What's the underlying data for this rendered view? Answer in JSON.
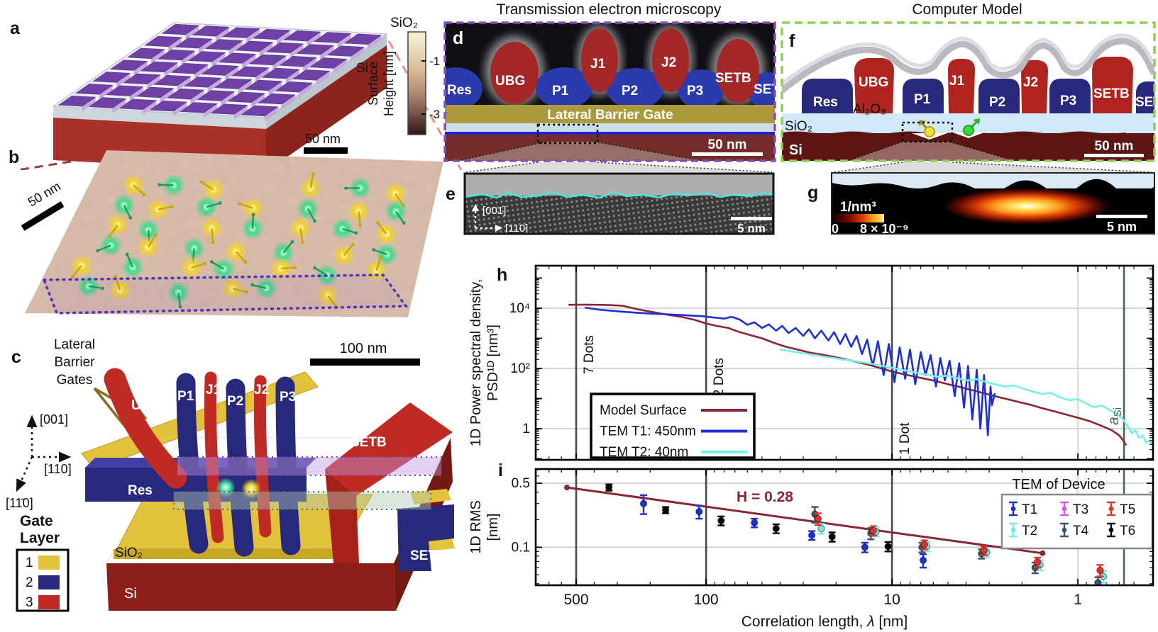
{
  "figure": {
    "panel_titles": {
      "tem": "Transmission electron microscopy",
      "model": "Computer Model"
    },
    "panel_letters": {
      "a": "a",
      "b": "b",
      "c": "c",
      "d": "d",
      "e": "e",
      "f": "f",
      "g": "g",
      "h": "h",
      "i": "i"
    },
    "gates": {
      "res": "Res",
      "ubg": "UBG",
      "p1": "P1",
      "j1": "J1",
      "p2": "P2",
      "j2": "J2",
      "p3": "P3",
      "setb": "SETB",
      "set": "SET"
    },
    "materials": {
      "si": "Si",
      "sio2": "SiO₂",
      "al2o3": "Al₂O₃"
    },
    "panel_a": {
      "colorbar_title_1": "Surface",
      "colorbar_title_2": "Height [nm]",
      "tick_hi": "-1",
      "tick_lo": "-3"
    },
    "panel_b": {
      "scale_left": "50 nm",
      "scale_top": "50 nm",
      "dot_yellow": "#f2d22e",
      "dot_green": "#3fd98a"
    },
    "panel_c": {
      "lbg_line1": "Lateral",
      "lbg_line2": "Barrier",
      "lbg_line3": "Gates",
      "axis_up": "[001]",
      "axis_right": "[110]",
      "axis_diag": "[11̄0]",
      "legend_title_1": "Gate",
      "legend_title_2": "Layer",
      "layers": [
        "1",
        "2",
        "3"
      ],
      "layer_colors": [
        "#e3c33c",
        "#28287d",
        "#bf2b24"
      ],
      "scale": "100 nm"
    },
    "panel_d": {
      "lateral_barrier_gate": "Lateral Barrier Gate",
      "scale": "50 nm"
    },
    "panel_e": {
      "axis_up": "[001]",
      "axis_right": "[110]",
      "scale": "5 nm"
    },
    "panel_f": {
      "scale": "50 nm"
    },
    "panel_g": {
      "cb_title": "1/nm³",
      "cb_min": "0",
      "cb_max": "8 × 10⁻⁹",
      "scale": "5 nm"
    }
  },
  "chart_data": [
    {
      "id": "psd",
      "type": "line",
      "title": "",
      "xlabel_parts": [
        "Correlation length, ",
        "λ",
        " [nm]"
      ],
      "ylabel_line1": "1D Power spectral density,",
      "ylabel_line2": "PSD¹ᴰ [nm³]",
      "x_scale": "log-reversed",
      "x_range": [
        825,
        0.394
      ],
      "x_ticks": [
        500,
        100,
        10,
        1
      ],
      "y_scale": "log",
      "y_range": [
        0.092,
        260000
      ],
      "y_tick_labels": [
        "10⁴",
        "10²",
        "1"
      ],
      "y_tick_values": [
        10000,
        100,
        1
      ],
      "grid": "on",
      "vlines": [
        {
          "lambda": 500,
          "label": "7 Dots",
          "color": "#4a4a4a"
        },
        {
          "lambda": 100,
          "label": "2 Dots",
          "color": "#4a4a4a"
        },
        {
          "lambda": 10,
          "label": "1 Dot",
          "color": "#4a4a4a"
        },
        {
          "lambda": 0.565,
          "label_main": "a",
          "label_sub": "Si",
          "color": "#4b6b4d"
        }
      ],
      "legend_position": "lower left",
      "series": [
        {
          "name": "Model Surface",
          "color": "#8b2531",
          "points": [
            [
              550,
              13000
            ],
            [
              430,
              13100
            ],
            [
              340,
              12800
            ],
            [
              280,
              12000
            ],
            [
              230,
              9000
            ],
            [
              190,
              7300
            ],
            [
              160,
              6000
            ],
            [
              135,
              5100
            ],
            [
              115,
              4100
            ],
            [
              100,
              3100
            ],
            [
              88,
              2600
            ],
            [
              76,
              2200
            ],
            [
              66,
              1600
            ],
            [
              57,
              1250
            ],
            [
              50,
              1000
            ],
            [
              43,
              700
            ],
            [
              37,
              520
            ],
            [
              32,
              420
            ],
            [
              28,
              340
            ],
            [
              24,
              290
            ],
            [
              21,
              250
            ],
            [
              18,
              205
            ],
            [
              15.5,
              165
            ],
            [
              13.5,
              135
            ],
            [
              11.7,
              105
            ],
            [
              10.1,
              80
            ],
            [
              8.8,
              66
            ],
            [
              7.6,
              54
            ],
            [
              6.6,
              45
            ],
            [
              5.7,
              37
            ],
            [
              5,
              30
            ],
            [
              4.3,
              24
            ],
            [
              3.7,
              19
            ],
            [
              3.2,
              15
            ],
            [
              2.8,
              12
            ],
            [
              2.4,
              9.5
            ],
            [
              2.1,
              7.8
            ],
            [
              1.8,
              6.2
            ],
            [
              1.6,
              5
            ],
            [
              1.35,
              3.8
            ],
            [
              1.15,
              2.9
            ],
            [
              1,
              2.3
            ],
            [
              0.87,
              1.8
            ],
            [
              0.76,
              1.3
            ],
            [
              0.66,
              0.9
            ],
            [
              0.6,
              0.6
            ],
            [
              0.57,
              0.4
            ],
            [
              0.55,
              0.28
            ]
          ]
        },
        {
          "name": "TEM T1: 450nm",
          "color": "#1e2fd6",
          "points": [
            [
              450,
              10500
            ],
            [
              380,
              9000
            ],
            [
              320,
              8200
            ],
            [
              270,
              7500
            ],
            [
              230,
              7000
            ],
            [
              195,
              6600
            ],
            [
              165,
              6300
            ],
            [
              140,
              6000
            ],
            [
              120,
              5700
            ],
            [
              103,
              5400
            ],
            [
              96,
              5100
            ],
            [
              88,
              4800
            ],
            [
              80,
              4500
            ],
            [
              73,
              5200
            ],
            [
              66,
              4200
            ],
            [
              60,
              2800
            ],
            [
              55,
              3400
            ],
            [
              50,
              2200
            ],
            [
              46,
              2900
            ],
            [
              42,
              1800
            ],
            [
              39,
              2600
            ],
            [
              36,
              1500
            ],
            [
              33,
              2200
            ],
            [
              30,
              1200
            ],
            [
              28,
              2000
            ],
            [
              26,
              1000
            ],
            [
              24,
              1800
            ],
            [
              22,
              850
            ],
            [
              20.5,
              1600
            ],
            [
              19,
              650
            ],
            [
              17.8,
              1400
            ],
            [
              16.6,
              520
            ],
            [
              15.5,
              1200
            ],
            [
              14.5,
              300
            ],
            [
              13.6,
              900
            ],
            [
              12.7,
              120
            ],
            [
              11.9,
              800
            ],
            [
              11.1,
              60
            ],
            [
              10.4,
              650
            ],
            [
              9.7,
              35
            ],
            [
              9.1,
              500
            ],
            [
              8.5,
              45
            ],
            [
              8,
              420
            ],
            [
              7.5,
              30
            ],
            [
              7,
              350
            ],
            [
              6.6,
              60
            ],
            [
              6.2,
              280
            ],
            [
              5.8,
              25
            ],
            [
              5.5,
              220
            ],
            [
              5.2,
              40
            ],
            [
              4.9,
              180
            ],
            [
              4.6,
              12
            ],
            [
              4.35,
              150
            ],
            [
              4.1,
              5
            ],
            [
              3.9,
              120
            ],
            [
              3.7,
              2
            ],
            [
              3.5,
              90
            ],
            [
              3.35,
              1
            ],
            [
              3.2,
              60
            ],
            [
              3.05,
              0.6
            ],
            [
              2.95,
              25
            ],
            [
              2.9,
              6
            ],
            [
              2.8,
              15
            ]
          ]
        },
        {
          "name": "TEM T2: 40nm",
          "color": "#74f0ec",
          "points": [
            [
              40,
              430
            ],
            [
              36,
              380
            ],
            [
              31,
              330
            ],
            [
              27,
              290
            ],
            [
              24,
              255
            ],
            [
              21,
              225
            ],
            [
              18.5,
              200
            ],
            [
              16,
              175
            ],
            [
              14,
              155
            ],
            [
              12.3,
              135
            ],
            [
              10.8,
              115
            ],
            [
              9.5,
              98
            ],
            [
              8.4,
              84
            ],
            [
              7.4,
              72
            ],
            [
              6.5,
              62
            ],
            [
              5.7,
              53
            ],
            [
              5,
              58
            ],
            [
              4.4,
              46
            ],
            [
              3.9,
              40
            ],
            [
              3.5,
              44
            ],
            [
              3.1,
              35
            ],
            [
              2.75,
              29
            ],
            [
              2.45,
              25
            ],
            [
              2.2,
              27
            ],
            [
              1.95,
              21
            ],
            [
              1.75,
              17
            ],
            [
              1.55,
              14
            ],
            [
              1.4,
              15.5
            ],
            [
              1.25,
              11
            ],
            [
              1.12,
              8.8
            ],
            [
              1,
              9.5
            ],
            [
              0.9,
              6.8
            ],
            [
              0.82,
              5.2
            ],
            [
              0.74,
              5.8
            ],
            [
              0.67,
              4
            ],
            [
              0.61,
              3
            ],
            [
              0.57,
              2
            ],
            [
              0.54,
              1.2
            ],
            [
              0.51,
              0.7
            ],
            [
              0.49,
              0.9
            ],
            [
              0.47,
              0.5
            ],
            [
              0.45,
              0.6
            ],
            [
              0.43,
              0.35
            ],
            [
              0.41,
              0.4
            ],
            [
              0.4,
              0.3
            ]
          ]
        }
      ]
    },
    {
      "id": "rms",
      "type": "scatter",
      "ylabel_line1": "1D RMS",
      "ylabel_line2": "[nm]",
      "y_scale": "log",
      "y_range": [
        0.0385,
        0.714
      ],
      "y_ticks": [
        0.5,
        0.1
      ],
      "x_tick_labels": [
        "500",
        "100",
        "10",
        "1"
      ],
      "fit": {
        "label": "H = 0.28",
        "color": "#8b2531",
        "lambda_start": 560,
        "rms_start": 0.449,
        "lambda_end": 1.55,
        "rms_end": 0.086
      },
      "legend_title": "TEM of Device",
      "series": [
        {
          "name": "T1",
          "color": "#1e2fd6",
          "points": [
            [
              217,
              0.3,
              0.07
            ],
            [
              109,
              0.245,
              0.04
            ],
            [
              55,
              0.185,
              0.02
            ],
            [
              27,
              0.135,
              0.015
            ],
            [
              14,
              0.1,
              0.012
            ],
            [
              6.8,
              0.072,
              0.012
            ]
          ]
        },
        {
          "name": "T2",
          "color": "#74e8e8",
          "points": [
            [
              24,
              0.16,
              0.02
            ],
            [
              12.2,
              0.147,
              0.015
            ],
            [
              6.5,
              0.102,
              0.012
            ],
            [
              3.1,
              0.088,
              0.01
            ],
            [
              1.6,
              0.064,
              0.008
            ],
            [
              0.73,
              0.048,
              0.007
            ]
          ]
        },
        {
          "name": "T3",
          "color": "#e055e0",
          "points": []
        },
        {
          "name": "T4",
          "color": "#3b5368",
          "points": [
            [
              26,
              0.23,
              0.045
            ],
            [
              13,
              0.142,
              0.02
            ],
            [
              6.9,
              0.1,
              0.012
            ],
            [
              3.3,
              0.085,
              0.01
            ],
            [
              1.7,
              0.06,
              0.008
            ],
            [
              0.78,
              0.041,
              0.006
            ]
          ]
        },
        {
          "name": "T5",
          "color": "#e63329",
          "points": [
            [
              25,
              0.205,
              0.03
            ],
            [
              12.6,
              0.152,
              0.018
            ],
            [
              6.7,
              0.107,
              0.012
            ],
            [
              3.2,
              0.092,
              0.01
            ],
            [
              1.65,
              0.069,
              0.008
            ],
            [
              0.76,
              0.056,
              0.008
            ]
          ]
        },
        {
          "name": "T6",
          "color": "#000000",
          "points": [
            [
              333,
              0.45,
              0.035
            ],
            [
              165,
              0.255,
              0.02
            ],
            [
              83,
              0.195,
              0.022
            ],
            [
              42,
              0.16,
              0.018
            ],
            [
              21,
              0.13,
              0.015
            ],
            [
              10.5,
              0.102,
              0.012
            ]
          ]
        }
      ]
    }
  ]
}
